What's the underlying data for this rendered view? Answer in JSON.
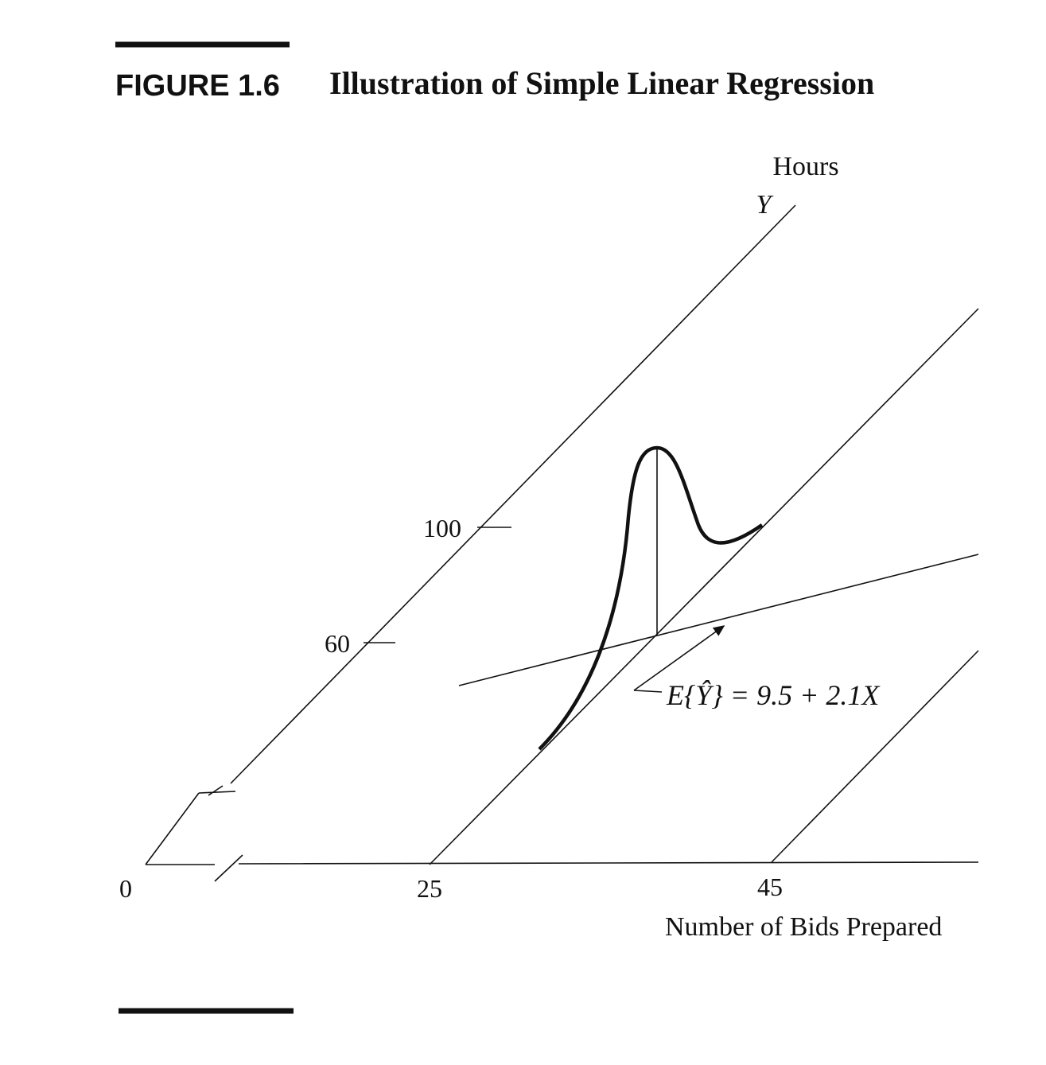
{
  "figure": {
    "label": "FIGURE 1.6",
    "title": "Illustration of Simple Linear Regression"
  },
  "axes": {
    "y_label": "Hours",
    "y_symbol": "Y",
    "x_label": "Number of Bids Prepared",
    "y_ticks": [
      "100",
      "60"
    ],
    "x_ticks": [
      "0",
      "25",
      "45"
    ]
  },
  "equation": "E{Ŷ} = 9.5 + 2.1X"
}
